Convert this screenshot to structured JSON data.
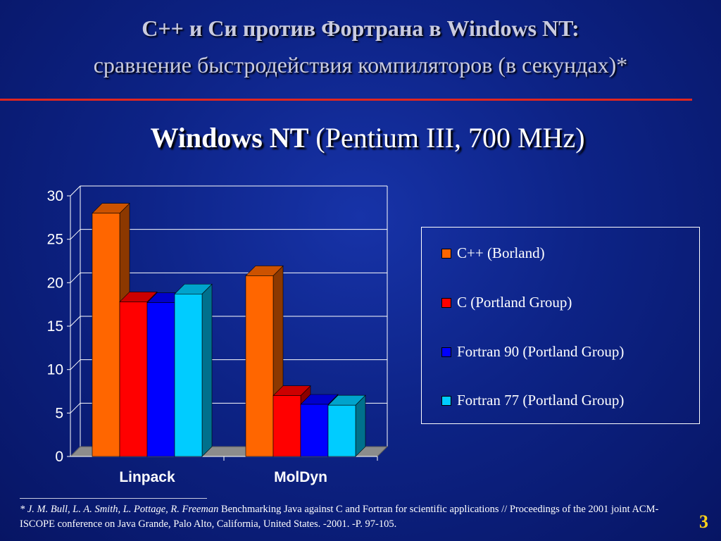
{
  "header": {
    "title_line1": "C++ и Си против Фортрана в Windows NT:",
    "title_line2": "сравнение быстродействия компиляторов (в секундах)*",
    "subtitle_bold": "Windows NT",
    "subtitle_rest": " (Pentium III, 700 MHz)"
  },
  "chart_data": {
    "type": "bar",
    "title": "",
    "xlabel": "",
    "ylabel": "",
    "categories": [
      "Linpack",
      "MolDyn"
    ],
    "series": [
      {
        "name": "C++ (Borland)",
        "values": [
          28,
          20.8
        ],
        "color": "#ff6600"
      },
      {
        "name": "C (Portland Group)",
        "values": [
          17.8,
          7
        ],
        "color": "#ff0000"
      },
      {
        "name": "Fortran 90 (Portland Group)",
        "values": [
          17.7,
          6
        ],
        "color": "#0000ff"
      },
      {
        "name": "Fortran 77 (Portland Group)",
        "values": [
          18.7,
          5.9
        ],
        "color": "#00ccff"
      }
    ],
    "ylim": [
      0,
      30
    ],
    "yticks": [
      0,
      5,
      10,
      15,
      20,
      25,
      30
    ],
    "grid": true,
    "legend_position": "right"
  },
  "footnote": {
    "authors": "* J. M. Bull, L. A. Smith, L. Pottage, R. Freeman",
    "text": " Benchmarking Java against C and Fortran for scientific applications // Proceedings of the 2001 joint ACM-ISCOPE conference on Java Grande, Palo Alto, California, United States. -2001. -P. 97-105."
  },
  "page_number": "3"
}
